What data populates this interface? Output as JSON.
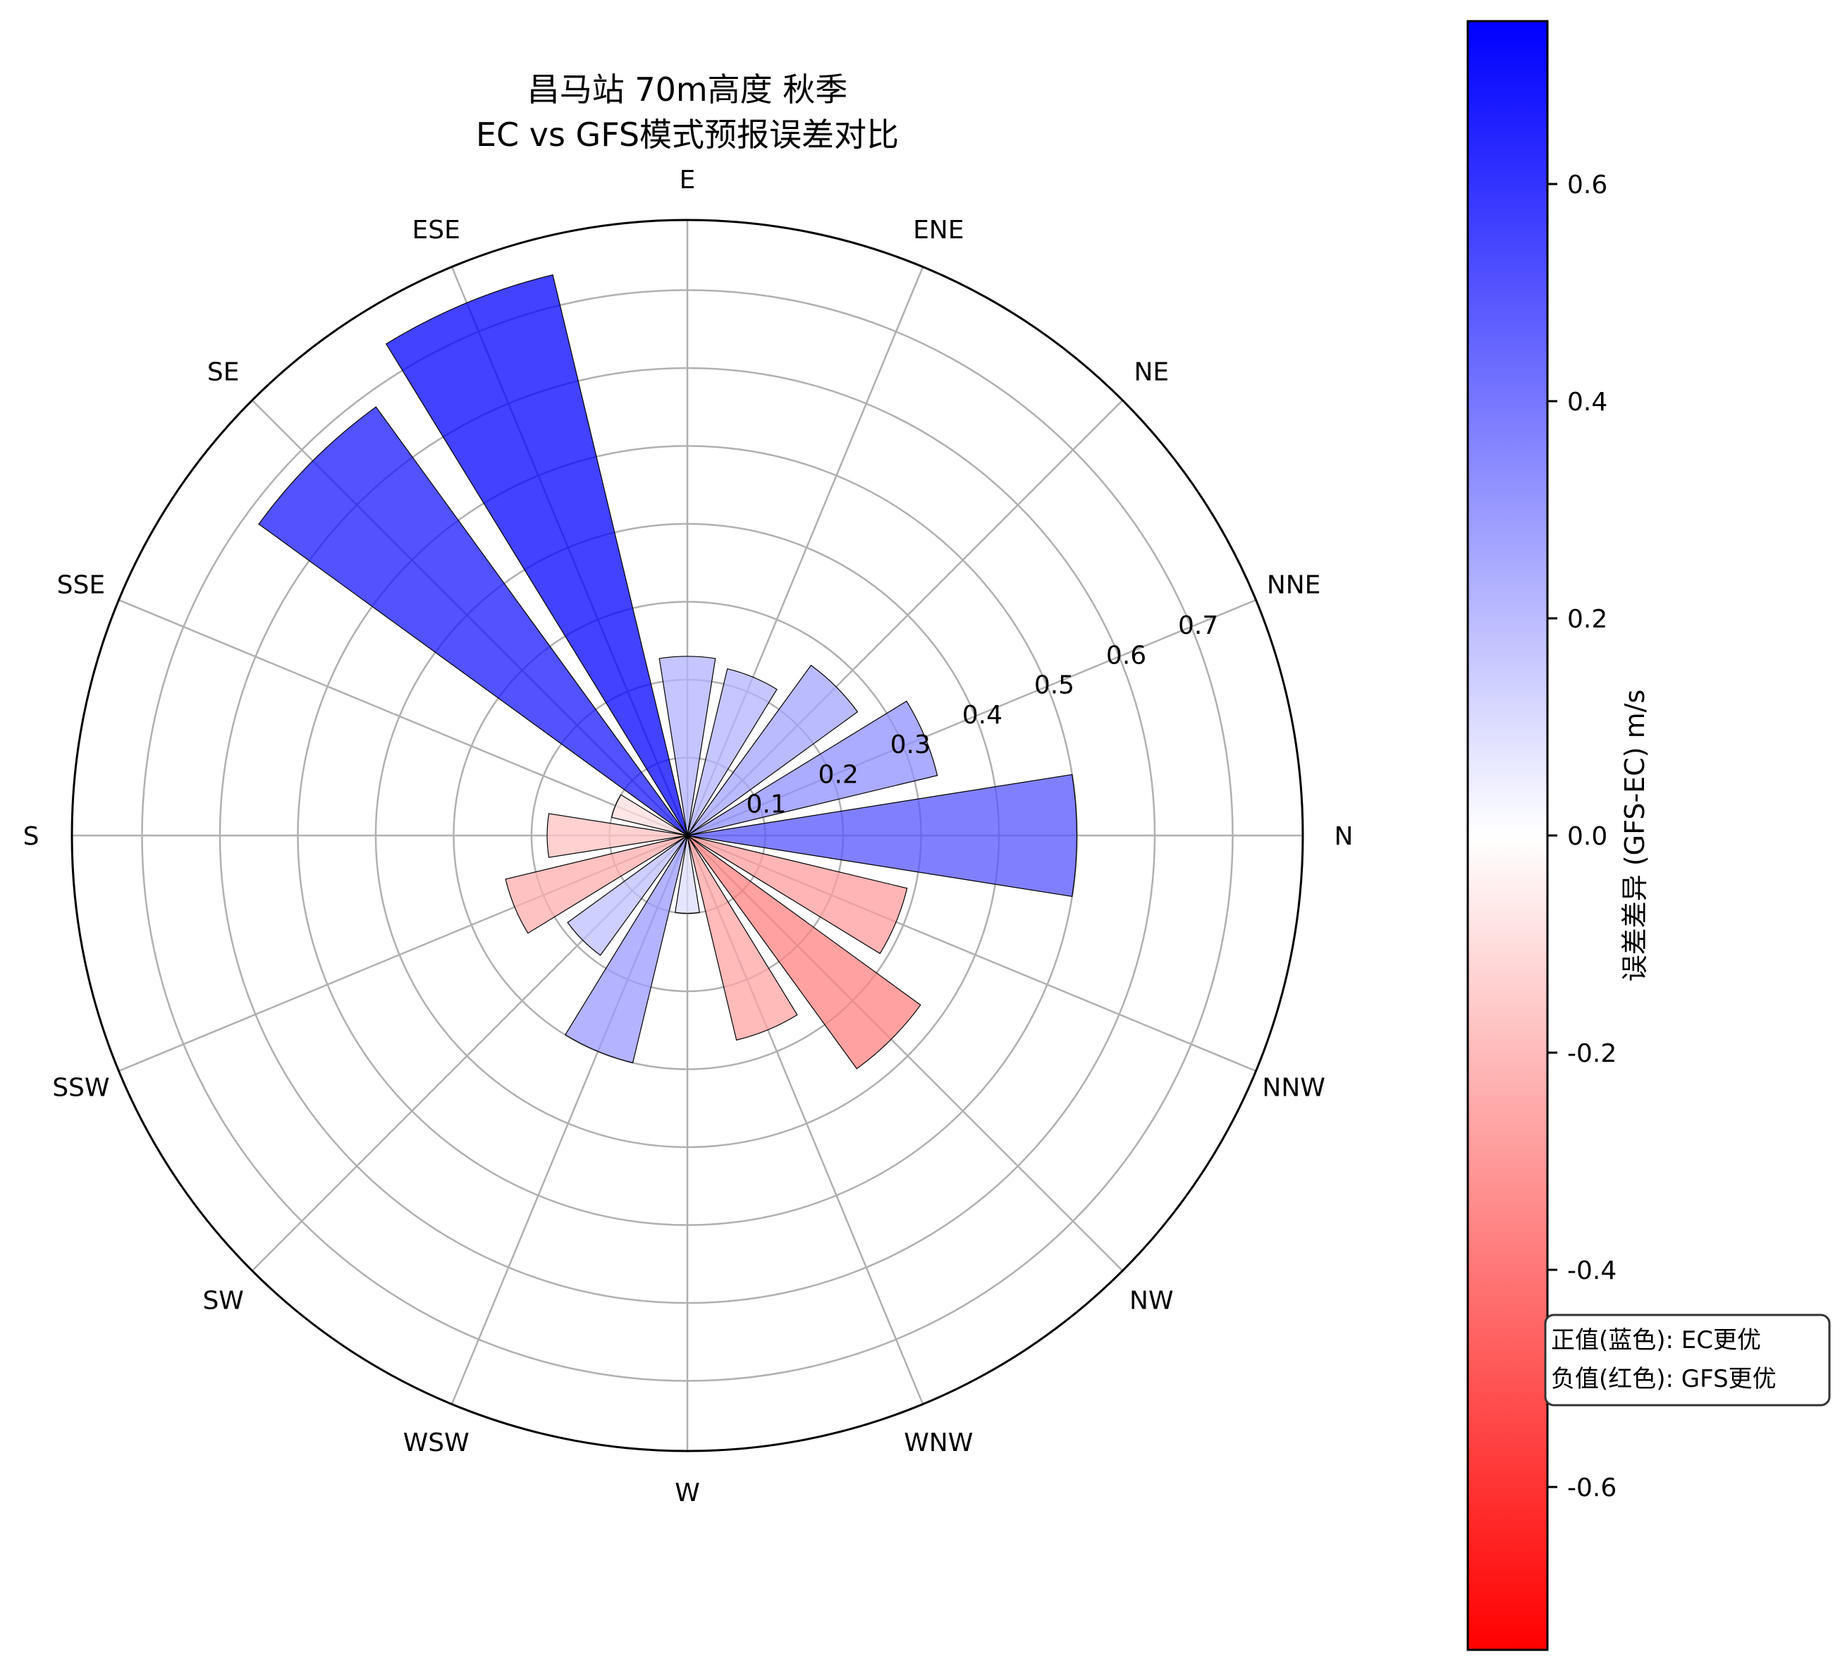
{
  "chart_data": {
    "type": "polar-bar",
    "title_line1": "昌马站 70m高度 秋季",
    "title_line2": "EC vs GFS模式预报误差对比",
    "directions": [
      "N",
      "NNE",
      "NE",
      "ENE",
      "E",
      "ESE",
      "SE",
      "SSE",
      "S",
      "SSW",
      "SW",
      "WSW",
      "W",
      "WNW",
      "NW",
      "NNW"
    ],
    "values": [
      0.5,
      0.33,
      0.27,
      0.22,
      0.23,
      0.74,
      0.68,
      0.1,
      0.18,
      0.24,
      0.19,
      0.3,
      0.1,
      0.27,
      0.37,
      0.29
    ],
    "r_ticks": [
      "0.1",
      "0.2",
      "0.3",
      "0.4",
      "0.5",
      "0.6",
      "0.7"
    ],
    "rmax": 0.79,
    "colorbar": {
      "label": "误差差异 (GFS-EC) m/s",
      "ticks": [
        "0.6",
        "0.4",
        "0.2",
        "0.0",
        "-0.2",
        "-0.4",
        "-0.6"
      ],
      "range": [
        -0.75,
        0.75
      ],
      "low_color": "#ff0000",
      "mid_color": "#ffffff",
      "high_color": "#0000ff"
    },
    "annotation": {
      "line1": "正值(蓝色): EC更优",
      "line2": "负值(红色): GFS更优"
    }
  }
}
